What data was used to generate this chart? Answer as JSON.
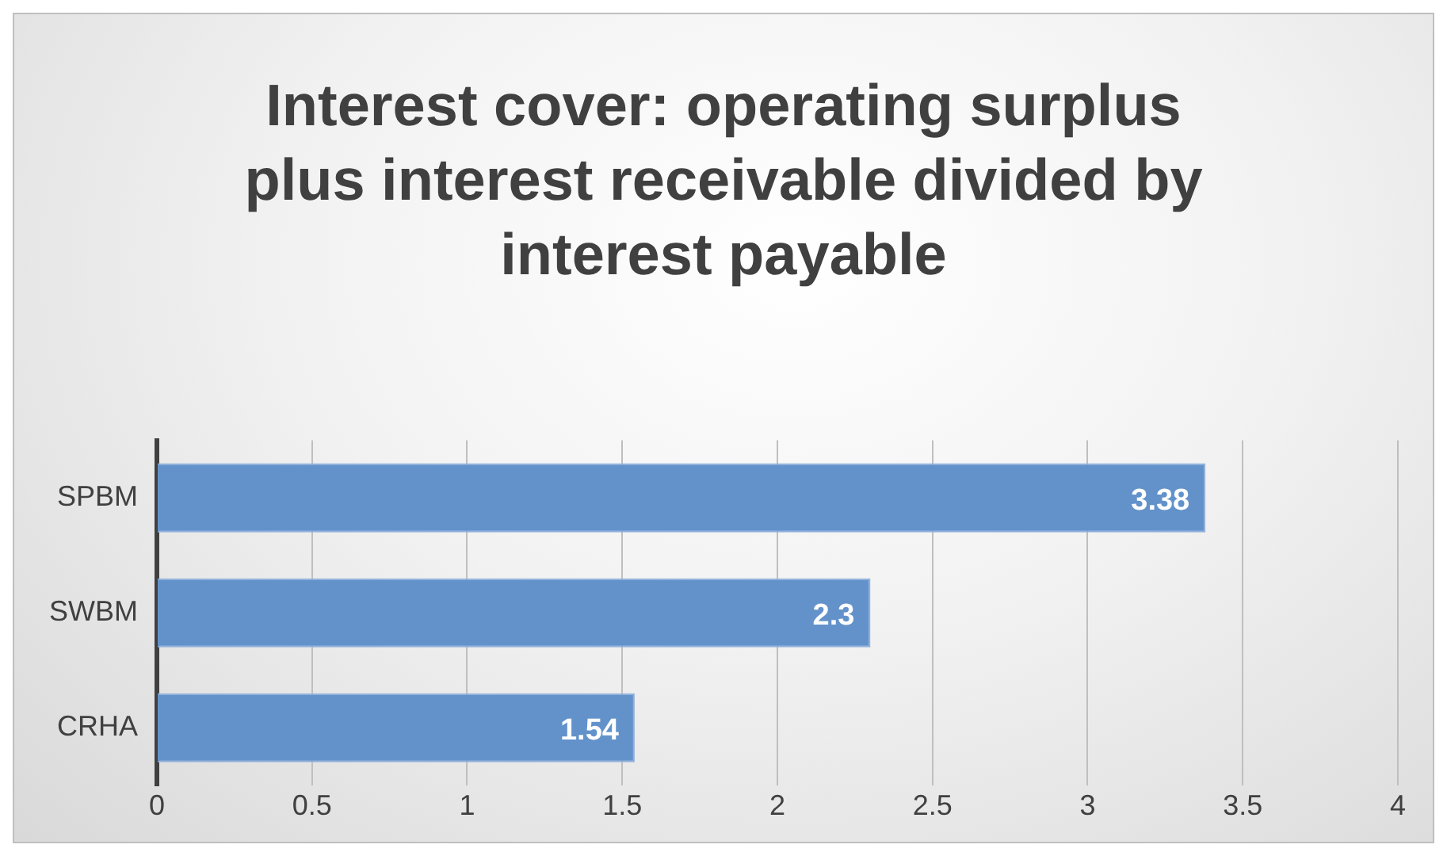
{
  "chart_data": {
    "type": "bar",
    "orientation": "horizontal",
    "title": "Interest cover: operating surplus plus interest receivable divided by interest payable",
    "categories": [
      "SPBM",
      "SWBM",
      "CRHA"
    ],
    "values": [
      3.38,
      2.3,
      1.54
    ],
    "color": "#6392cb",
    "xlim": [
      0,
      4
    ],
    "xticks": [
      0,
      0.5,
      1,
      1.5,
      2,
      2.5,
      3,
      3.5,
      4
    ],
    "grid": "x",
    "data_labels": true,
    "legend": false
  }
}
